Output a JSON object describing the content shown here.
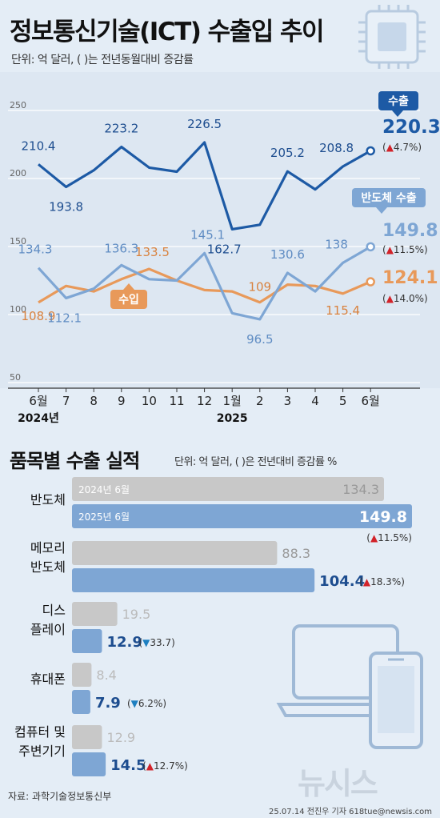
{
  "title": "정보통신기술(ICT) 수출입 추이",
  "unit_note": "단위: 억 달러, ( )는 전년동월대비 증감률",
  "chart_data": [
    {
      "type": "line",
      "categories": [
        "6월",
        "7",
        "8",
        "9",
        "10",
        "11",
        "12",
        "1월",
        "2",
        "3",
        "4",
        "5",
        "6월"
      ],
      "year_labels": [
        "2024년",
        "2025"
      ],
      "y_ticks": [
        250,
        200,
        150,
        100,
        50
      ],
      "ylim": [
        50,
        250
      ],
      "series": [
        {
          "name": "수출",
          "values": [
            210.4,
            193.8,
            206,
            223.2,
            208,
            205,
            226.5,
            162.7,
            166,
            205.2,
            192,
            208.8,
            220.3
          ],
          "labels": [
            "210.4",
            "193.8",
            "",
            "223.2",
            "",
            "",
            "226.5",
            "162.7",
            "",
            "205.2",
            "",
            "208.8",
            "220.3"
          ],
          "change": "(▲4.7%)",
          "color": "#1d5aa5"
        },
        {
          "name": "반도체 수출",
          "values": [
            134.3,
            112.1,
            119,
            136.3,
            126,
            125,
            145.1,
            101,
            96.5,
            130.6,
            117,
            138,
            149.8
          ],
          "labels": [
            "134.3",
            "112.1",
            "",
            "136.3",
            "",
            "",
            "145.1",
            "",
            "96.5",
            "130.6",
            "",
            "138",
            "149.8"
          ],
          "change": "(▲11.5%)",
          "color": "#7ea6d4"
        },
        {
          "name": "수입",
          "values": [
            108.9,
            121,
            117,
            126,
            133.5,
            125,
            118,
            117,
            109,
            122,
            121,
            115.4,
            124.1
          ],
          "labels": [
            "108.9",
            "",
            "",
            "",
            "133.5",
            "",
            "",
            "",
            "109",
            "",
            "",
            "115.4",
            "124.1"
          ],
          "change": "(▲14.0%)",
          "color": "#e8995a"
        }
      ]
    },
    {
      "type": "bar",
      "title": "품목별 수출 실적",
      "unit_note": "단위: 억 달러, ( )은 전년대비 증감률 %",
      "legend": [
        "2024년 6월",
        "2025년 6월"
      ],
      "categories": [
        {
          "lines": [
            "반도체"
          ],
          "prev": 134.3,
          "cur": 149.8,
          "change": "(▲11.5%)",
          "dir": "up"
        },
        {
          "lines": [
            "메모리",
            "반도체"
          ],
          "prev": 88.3,
          "cur": 104.4,
          "change": "(▲18.3%)",
          "dir": "up"
        },
        {
          "lines": [
            "디스",
            "플레이"
          ],
          "prev": 19.5,
          "cur": 12.9,
          "change": "(▼33.7)",
          "dir": "down"
        },
        {
          "lines": [
            "휴대폰"
          ],
          "prev": 8.4,
          "cur": 7.9,
          "change": "(▼6.2%)",
          "dir": "down"
        },
        {
          "lines": [
            "컴퓨터 및",
            "주변기기"
          ],
          "prev": 12.9,
          "cur": 14.5,
          "change": "(▲12.7%)",
          "dir": "up"
        }
      ],
      "max": 160,
      "colors": {
        "prev": "#c8c8c8",
        "cur": "#7ea6d4",
        "up": "#d2232a",
        "down": "#1d7fc0"
      }
    }
  ],
  "source": "자료: 과학기술정보통신부",
  "logo": "뉴시스",
  "credit": "25.07.14 전진우 기자 618tue@newsis.com"
}
